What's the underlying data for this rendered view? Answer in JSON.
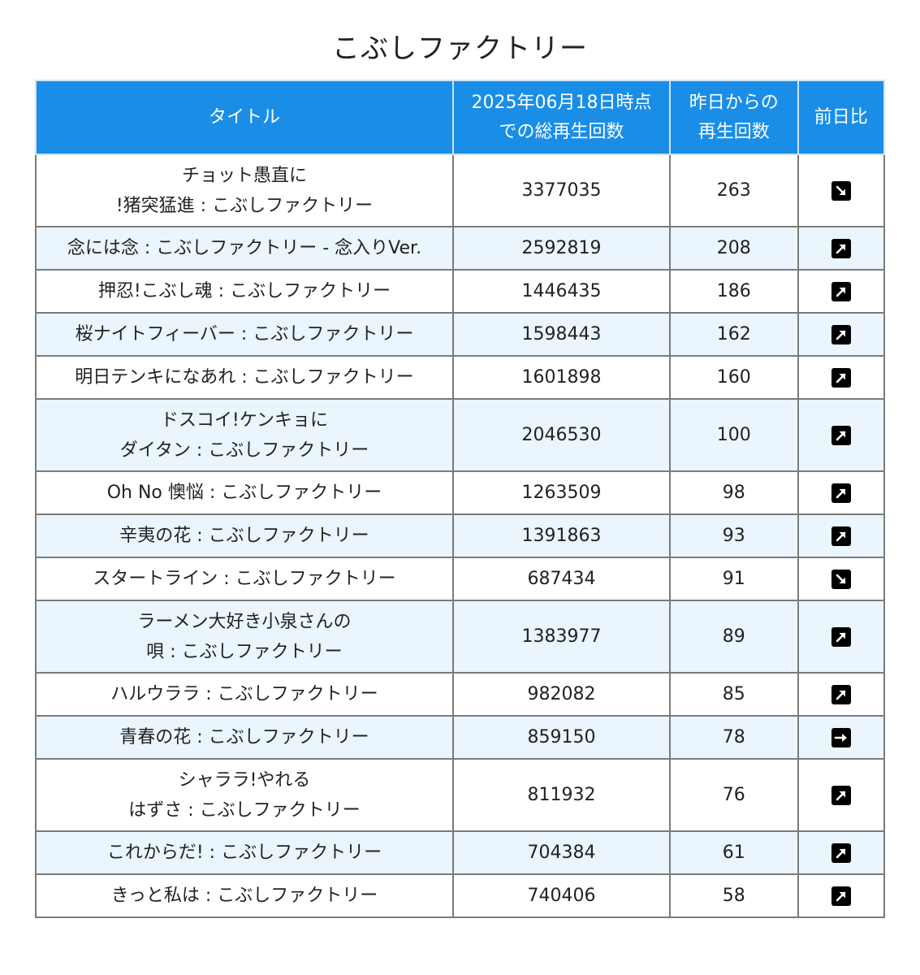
{
  "page_title": "こぶしファクトリー",
  "table": {
    "headers": {
      "title": "タイトル",
      "total_line1": "2025年06月18日時点",
      "total_line2": "での総再生回数",
      "diff_line1": "昨日からの",
      "diff_line2": "再生回数",
      "trend": "前日比"
    },
    "rows": [
      {
        "title_lines": [
          "チョット愚直に",
          "!猪突猛進 : こぶしファクトリー"
        ],
        "total": "3377035",
        "diff": "263",
        "trend": "down-right-arrow-icon"
      },
      {
        "title_lines": [
          "念には念 : こぶしファクトリー - 念入りVer."
        ],
        "total": "2592819",
        "diff": "208",
        "trend": "up-right-arrow-icon"
      },
      {
        "title_lines": [
          "押忍!こぶし魂 : こぶしファクトリー"
        ],
        "total": "1446435",
        "diff": "186",
        "trend": "up-right-arrow-icon"
      },
      {
        "title_lines": [
          "桜ナイトフィーバー : こぶしファクトリー"
        ],
        "total": "1598443",
        "diff": "162",
        "trend": "up-right-arrow-icon"
      },
      {
        "title_lines": [
          "明日テンキになあれ : こぶしファクトリー"
        ],
        "total": "1601898",
        "diff": "160",
        "trend": "up-right-arrow-icon"
      },
      {
        "title_lines": [
          "ドスコイ!ケンキョに",
          "ダイタン : こぶしファクトリー"
        ],
        "total": "2046530",
        "diff": "100",
        "trend": "up-right-arrow-icon"
      },
      {
        "title_lines": [
          "Oh No 懊悩 : こぶしファクトリー"
        ],
        "total": "1263509",
        "diff": "98",
        "trend": "up-right-arrow-icon"
      },
      {
        "title_lines": [
          "辛夷の花 : こぶしファクトリー"
        ],
        "total": "1391863",
        "diff": "93",
        "trend": "up-right-arrow-icon"
      },
      {
        "title_lines": [
          "スタートライン : こぶしファクトリー"
        ],
        "total": "687434",
        "diff": "91",
        "trend": "down-right-arrow-icon"
      },
      {
        "title_lines": [
          "ラーメン大好き小泉さんの",
          "唄 : こぶしファクトリー"
        ],
        "total": "1383977",
        "diff": "89",
        "trend": "up-right-arrow-icon"
      },
      {
        "title_lines": [
          "ハルウララ : こぶしファクトリー"
        ],
        "total": "982082",
        "diff": "85",
        "trend": "up-right-arrow-icon"
      },
      {
        "title_lines": [
          "青春の花 : こぶしファクトリー"
        ],
        "total": "859150",
        "diff": "78",
        "trend": "right-arrow-icon"
      },
      {
        "title_lines": [
          "シャララ!やれる",
          "はずさ : こぶしファクトリー"
        ],
        "total": "811932",
        "diff": "76",
        "trend": "up-right-arrow-icon"
      },
      {
        "title_lines": [
          "これからだ! : こぶしファクトリー"
        ],
        "total": "704384",
        "diff": "61",
        "trend": "up-right-arrow-icon"
      },
      {
        "title_lines": [
          "きっと私は : こぶしファクトリー"
        ],
        "total": "740406",
        "diff": "58",
        "trend": "up-right-arrow-icon"
      }
    ]
  }
}
